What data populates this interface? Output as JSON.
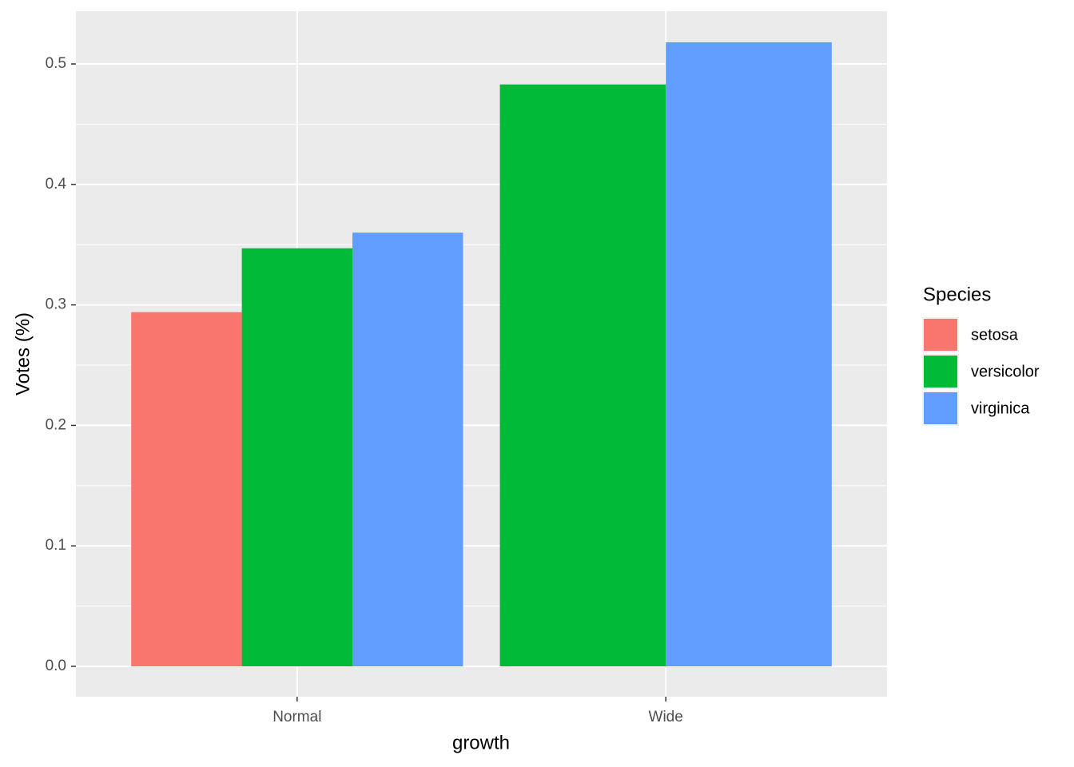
{
  "chart_data": {
    "type": "bar",
    "x_label": "growth",
    "y_label": "Votes (%)",
    "legend_title": "Species",
    "categories": [
      "Normal",
      "Wide"
    ],
    "series": [
      {
        "name": "setosa",
        "color": "#f8766d",
        "values": [
          0.294,
          null
        ]
      },
      {
        "name": "versicolor",
        "color": "#00ba38",
        "values": [
          0.347,
          0.483
        ]
      },
      {
        "name": "virginica",
        "color": "#619cff",
        "values": [
          0.36,
          0.518
        ]
      }
    ],
    "ylim": [
      -0.0252,
      0.5438
    ],
    "yticks": [
      {
        "value": 0,
        "label": "0.0"
      },
      0.1,
      0.2,
      0.3,
      0.4,
      0.5
    ],
    "grid": true,
    "legend": "right"
  }
}
